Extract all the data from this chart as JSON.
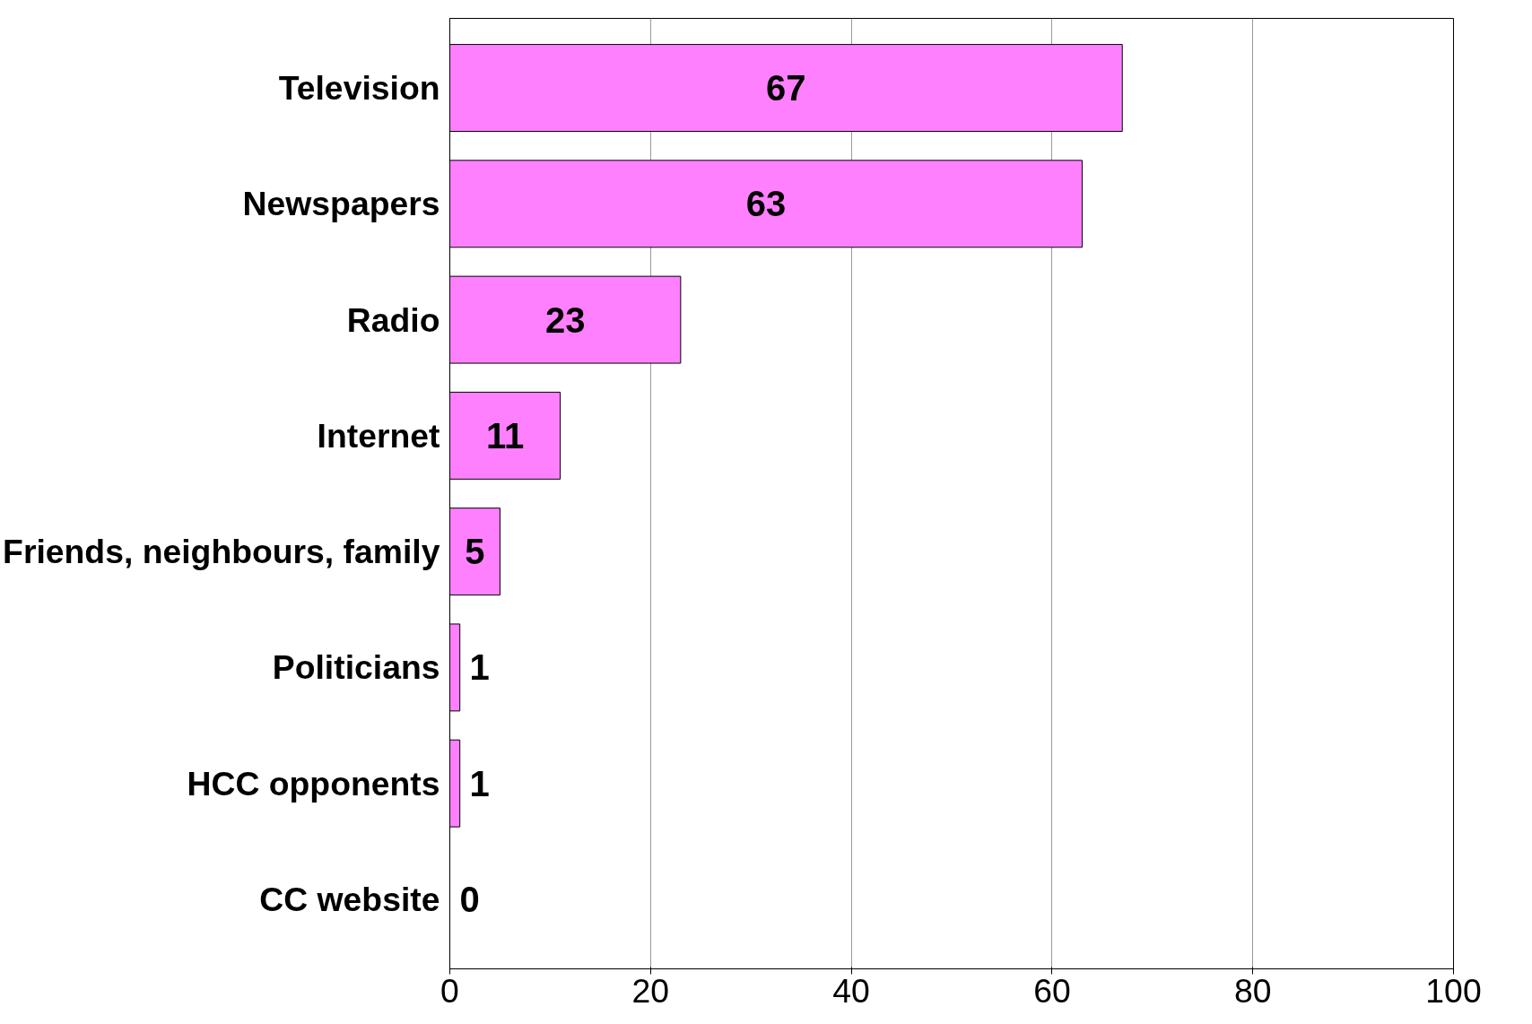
{
  "chart_data": {
    "type": "bar",
    "orientation": "horizontal",
    "categories": [
      "Television",
      "Newspapers",
      "Radio",
      "Internet",
      "Friends, neighbours, family",
      "Politicians",
      "HCC opponents",
      "CC website"
    ],
    "values": [
      67,
      63,
      23,
      11,
      5,
      1,
      1,
      0
    ],
    "color": "#ff80ff",
    "xlim": [
      0,
      100
    ],
    "xticks": [
      0,
      20,
      40,
      60,
      80,
      100
    ],
    "grid": "x",
    "data_labels": true
  }
}
